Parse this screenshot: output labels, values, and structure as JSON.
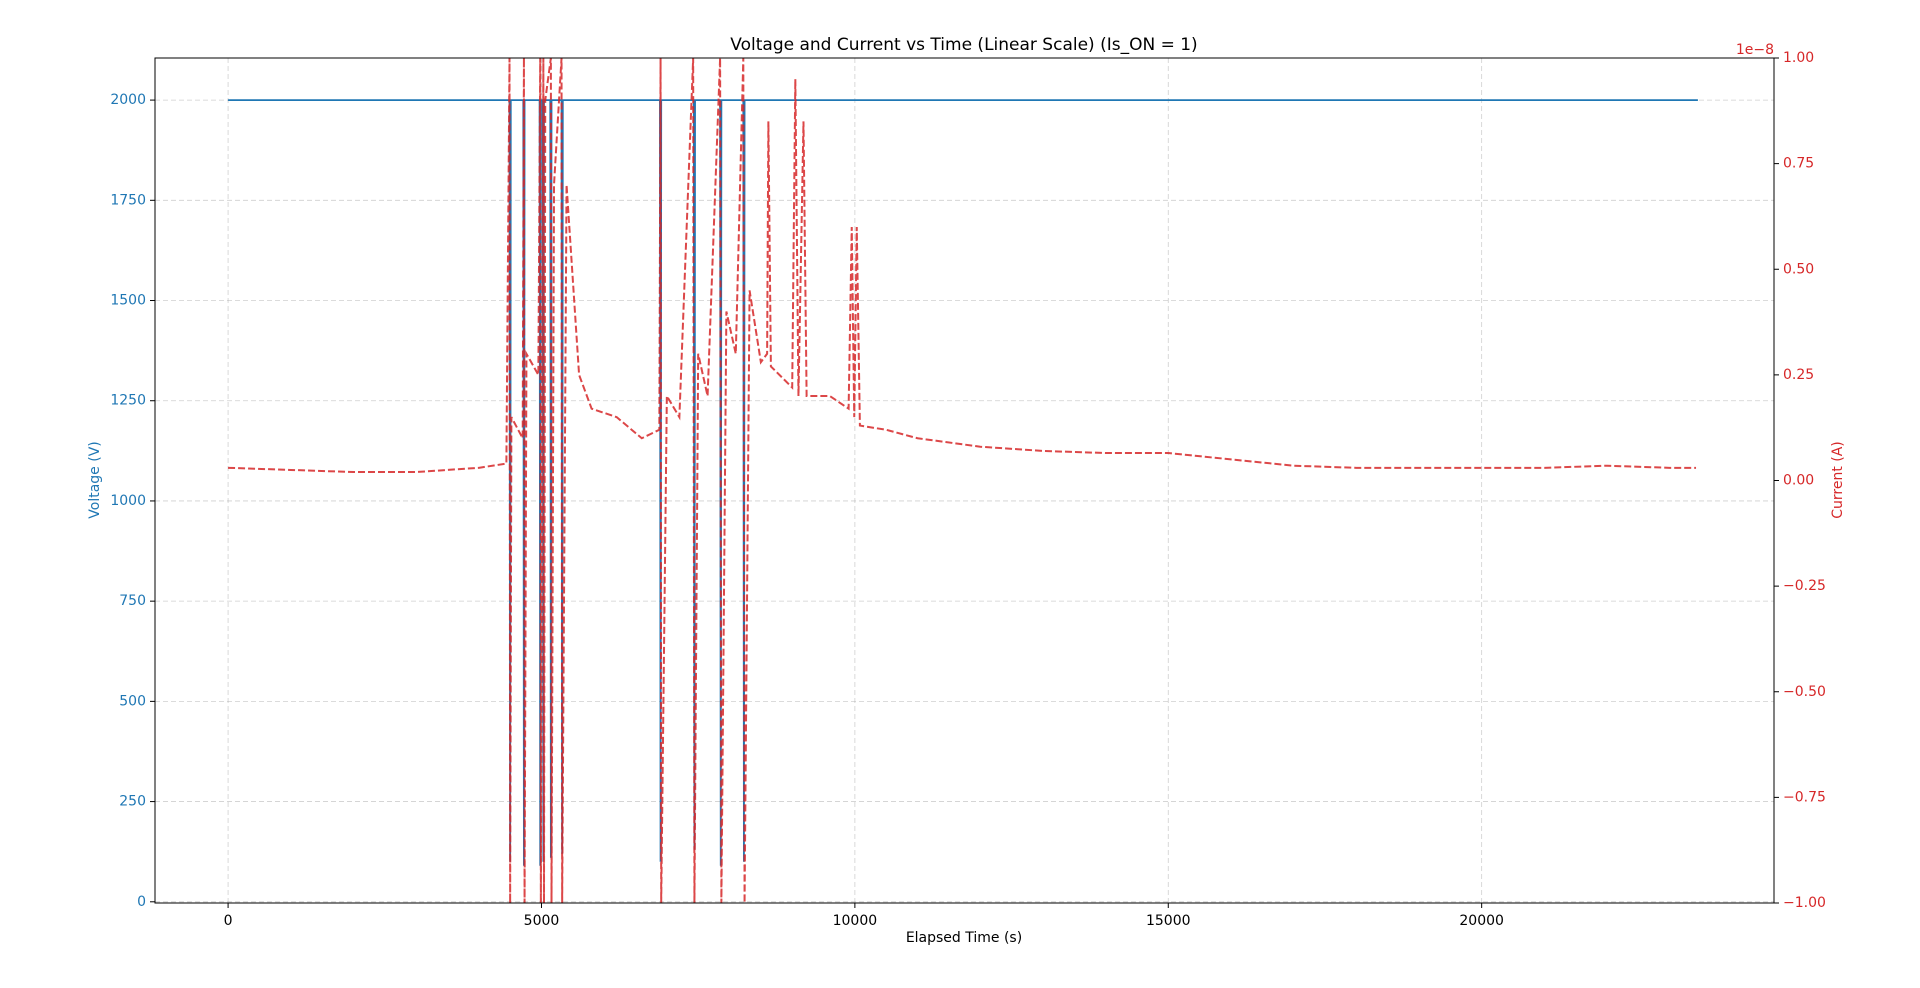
{
  "chart_data": {
    "type": "line",
    "title": "Voltage and Current vs Time (Linear Scale) (Is_ON = 1)",
    "xlabel": "Elapsed Time (s)",
    "ylabel": "Voltage (V)",
    "y2label": "Current (A)",
    "y2_offset_label": "1e−8",
    "xlim": [
      -1166,
      24664
    ],
    "xticks": [
      0,
      5000,
      10000,
      15000,
      20000
    ],
    "ylim": [
      -3,
      2105
    ],
    "yticks": [
      0,
      250,
      500,
      750,
      1000,
      1250,
      1500,
      1750,
      2000
    ],
    "y2lim": [
      -1e-08,
      1e-08
    ],
    "y2ticks": [
      {
        "value": -1e-08,
        "label": "−1.00"
      },
      {
        "value": -7.5e-09,
        "label": "−0.75"
      },
      {
        "value": -5e-09,
        "label": "−0.50"
      },
      {
        "value": -2.5e-09,
        "label": "−0.25"
      },
      {
        "value": 0,
        "label": "0.00"
      },
      {
        "value": 2.5e-09,
        "label": "0.25"
      },
      {
        "value": 5e-09,
        "label": "0.50"
      },
      {
        "value": 7.5e-09,
        "label": "0.75"
      },
      {
        "value": 1e-08,
        "label": "1.00"
      }
    ],
    "grid": true,
    "series": [
      {
        "color": "#1f77b4",
        "linestyle": "solid",
        "axis": "y",
        "x": [
          0,
          4490,
          4500,
          4510,
          4710,
          4720,
          4730,
          4970,
          4980,
          4990,
          5020,
          5030,
          5040,
          5140,
          5150,
          5160,
          5320,
          5330,
          5340,
          6890,
          6900,
          6910,
          7430,
          7440,
          7450,
          7850,
          7860,
          7870,
          8220,
          8230,
          8240,
          23450
        ],
        "values": [
          2000,
          2000,
          100,
          2000,
          2000,
          90,
          2000,
          2000,
          90,
          2000,
          2000,
          100,
          2000,
          2000,
          110,
          2000,
          2000,
          120,
          2000,
          2000,
          100,
          2000,
          2000,
          130,
          2000,
          2000,
          90,
          2000,
          2000,
          100,
          2000,
          2000
        ]
      },
      {
        "color": "#d62728",
        "linestyle": "dashed",
        "axis": "y2",
        "x": [
          0,
          1000,
          2000,
          3000,
          4000,
          4440,
          4490,
          4500,
          4520,
          4700,
          4720,
          4730,
          4760,
          4950,
          4980,
          4990,
          5030,
          5040,
          5060,
          5150,
          5160,
          5200,
          5320,
          5330,
          5400,
          5600,
          5800,
          6200,
          6600,
          6880,
          6900,
          6910,
          7000,
          7200,
          7420,
          7440,
          7500,
          7650,
          7850,
          7870,
          7950,
          8100,
          8220,
          8240,
          8320,
          8500,
          8600,
          8620,
          8660,
          9000,
          9050,
          9100,
          9180,
          9230,
          9600,
          9900,
          9950,
          9990,
          10030,
          10080,
          10500,
          11000,
          12000,
          13000,
          14000,
          15000,
          16000,
          17000,
          18000,
          20000,
          21000,
          22000,
          23000,
          23420
        ],
        "values": [
          3e-10,
          2.5e-10,
          2e-10,
          2e-10,
          3e-10,
          4e-10,
          1e-08,
          -1e-08,
          1.5e-09,
          1e-09,
          1e-08,
          -1e-08,
          3e-09,
          2.5e-09,
          1e-08,
          -1e-08,
          1e-08,
          -1e-08,
          9e-09,
          1e-08,
          -1e-08,
          7e-09,
          1e-08,
          -1e-08,
          7e-09,
          2.5e-09,
          1.7e-09,
          1.5e-09,
          1e-09,
          1.2e-09,
          1e-08,
          -1e-08,
          2e-09,
          1.5e-09,
          1e-08,
          -1e-08,
          3e-09,
          2e-09,
          1e-08,
          -1e-08,
          4e-09,
          3e-09,
          1e-08,
          -1e-08,
          4.5e-09,
          2.8e-09,
          3e-09,
          8.5e-09,
          2.7e-09,
          2.2e-09,
          9.5e-09,
          2e-09,
          8.5e-09,
          2e-09,
          2e-09,
          1.7e-09,
          6e-09,
          1.5e-09,
          6e-09,
          1.3e-09,
          1.2e-09,
          1e-09,
          8e-10,
          7e-10,
          6.5e-10,
          6.5e-10,
          5e-10,
          3.5e-10,
          3e-10,
          3e-10,
          3e-10,
          3.5e-10,
          3e-10,
          3e-10
        ]
      }
    ]
  }
}
